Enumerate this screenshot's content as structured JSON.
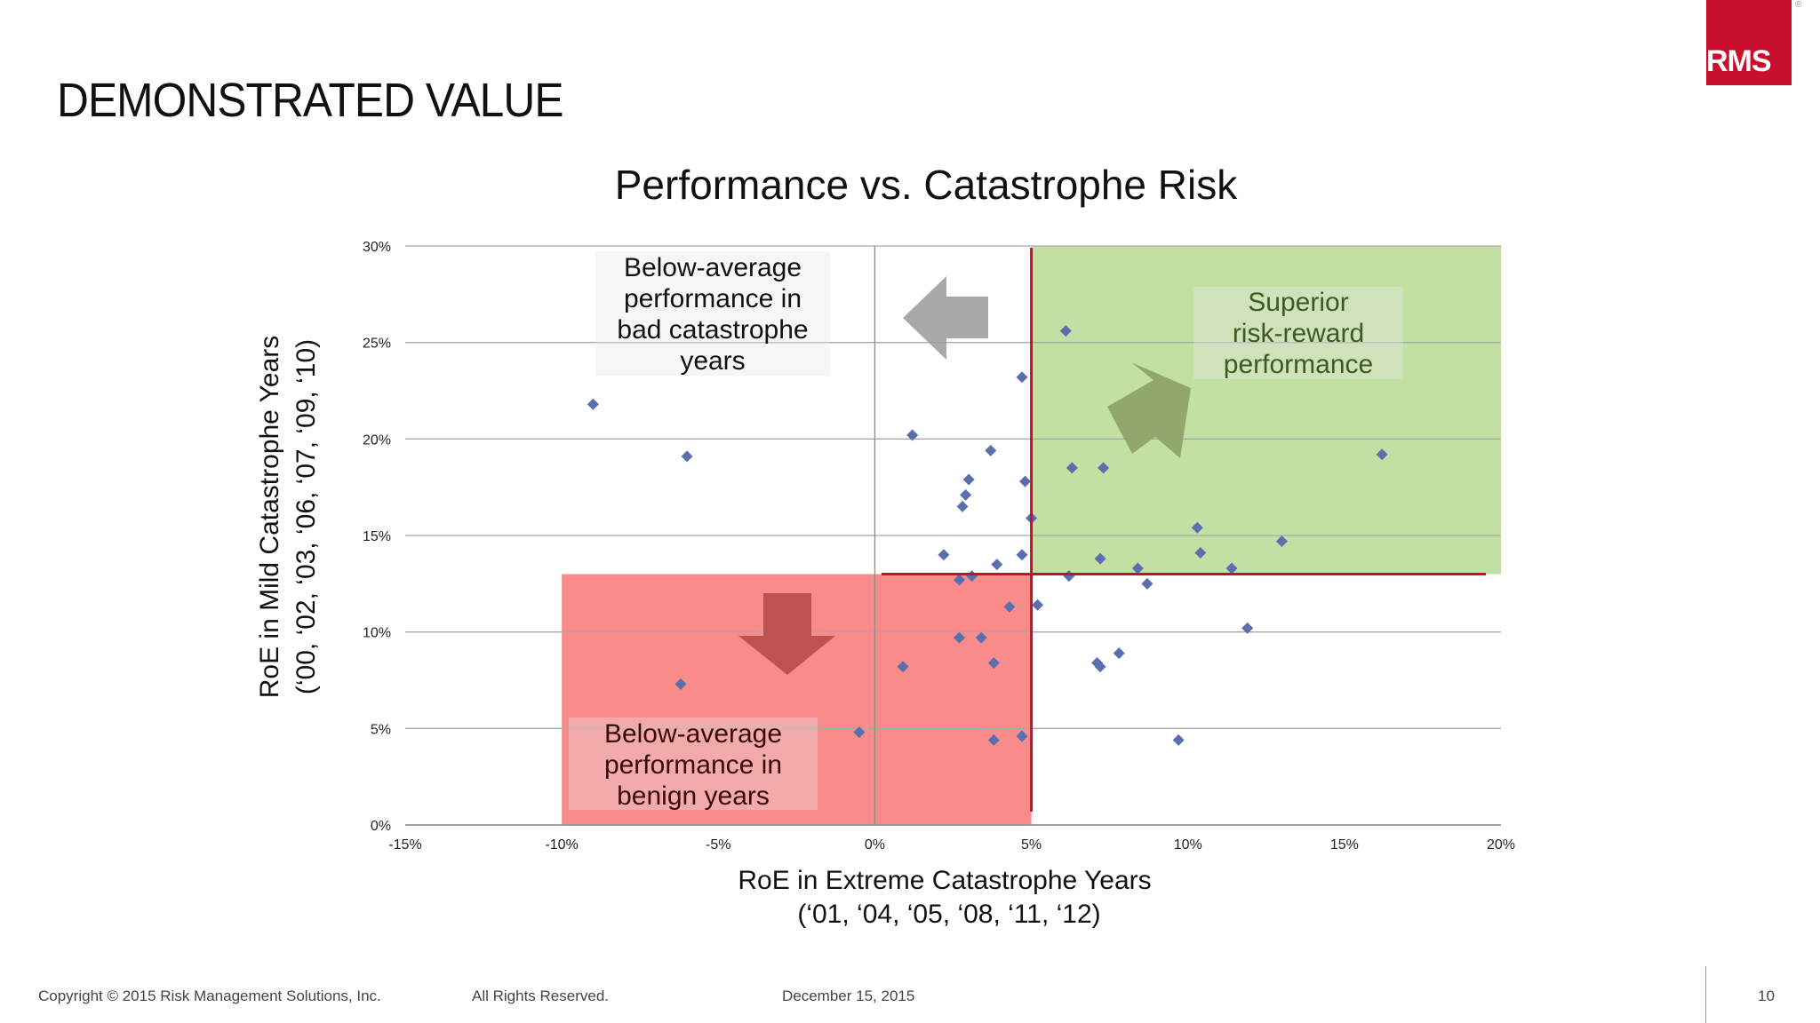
{
  "page": {
    "heading": "DEMONSTRATED VALUE",
    "logo": "RMS",
    "footer": {
      "copyright": "Copyright © 2015 Risk Management Solutions, Inc.",
      "rights": "All Rights Reserved.",
      "date": "December 15, 2015",
      "page_number": "10"
    }
  },
  "chart_data": {
    "type": "scatter",
    "title": "Performance vs. Catastrophe Risk",
    "xlabel": "RoE in Extreme Catastrophe Years",
    "xlabel_sub": "(‘01, ‘04, ‘05, ‘08, ‘11, ‘12)",
    "ylabel": "RoE in Mild Catastrophe Years",
    "ylabel_sub": "(‘00, ‘02, ‘03, ‘06, ‘07, ‘09, ‘10)",
    "xlim": [
      -15,
      20
    ],
    "ylim": [
      0,
      30
    ],
    "x_ticks": [
      -15,
      -10,
      -5,
      0,
      5,
      10,
      15,
      20
    ],
    "x_tick_labels": [
      "-15%",
      "-10%",
      "-5%",
      "0%",
      "5%",
      "10%",
      "15%",
      "20%"
    ],
    "y_ticks": [
      0,
      5,
      10,
      15,
      20,
      25,
      30
    ],
    "y_tick_labels": [
      "0%",
      "5%",
      "10%",
      "15%",
      "20%",
      "25%",
      "30%"
    ],
    "grid": "horizontal",
    "average_lines": {
      "x": 5,
      "y": 13
    },
    "colors": {
      "point": "#5a6fae",
      "average_line": "#c8102e",
      "superior_zone": "#c3e0a4",
      "benign_zone": "#f98b8b",
      "grey_arrow": "#9e9e9e",
      "green_arrow": "#8fa36a",
      "red_arrow": "#b94a4a"
    },
    "zones": [
      {
        "name": "superior",
        "x": [
          5,
          20
        ],
        "y": [
          13,
          30
        ]
      },
      {
        "name": "benign",
        "x": [
          -10,
          5
        ],
        "y": [
          0,
          13
        ]
      }
    ],
    "annotations": [
      {
        "name": "bad-cat-years",
        "lines": [
          "Below-average",
          "performance in",
          "bad catastrophe",
          "years"
        ]
      },
      {
        "name": "superior",
        "lines": [
          "Superior",
          "risk-reward",
          "performance"
        ]
      },
      {
        "name": "benign-years",
        "lines": [
          "Below-average",
          "performance in",
          "benign years"
        ]
      }
    ],
    "points": [
      [
        -9.0,
        21.8
      ],
      [
        -6.0,
        19.1
      ],
      [
        -6.2,
        7.3
      ],
      [
        -0.5,
        4.8
      ],
      [
        1.2,
        20.2
      ],
      [
        0.9,
        8.2
      ],
      [
        2.2,
        14.0
      ],
      [
        2.7,
        12.7
      ],
      [
        2.7,
        9.7
      ],
      [
        2.8,
        16.5
      ],
      [
        2.9,
        17.1
      ],
      [
        3.0,
        17.9
      ],
      [
        3.1,
        12.9
      ],
      [
        3.4,
        9.7
      ],
      [
        3.7,
        19.4
      ],
      [
        3.8,
        8.4
      ],
      [
        3.8,
        4.4
      ],
      [
        3.9,
        13.5
      ],
      [
        4.3,
        11.3
      ],
      [
        4.7,
        23.2
      ],
      [
        4.7,
        14.0
      ],
      [
        4.7,
        4.6
      ],
      [
        4.8,
        17.8
      ],
      [
        5.0,
        15.9
      ],
      [
        5.2,
        11.4
      ],
      [
        6.1,
        25.6
      ],
      [
        6.2,
        12.9
      ],
      [
        6.3,
        18.5
      ],
      [
        7.1,
        8.4
      ],
      [
        7.2,
        8.2
      ],
      [
        7.2,
        13.8
      ],
      [
        7.3,
        18.5
      ],
      [
        7.8,
        8.9
      ],
      [
        8.4,
        13.3
      ],
      [
        8.7,
        12.5
      ],
      [
        9.7,
        4.4
      ],
      [
        10.3,
        15.4
      ],
      [
        10.4,
        14.1
      ],
      [
        11.4,
        13.3
      ],
      [
        11.9,
        10.2
      ],
      [
        13.0,
        14.7
      ],
      [
        16.2,
        19.2
      ]
    ]
  }
}
